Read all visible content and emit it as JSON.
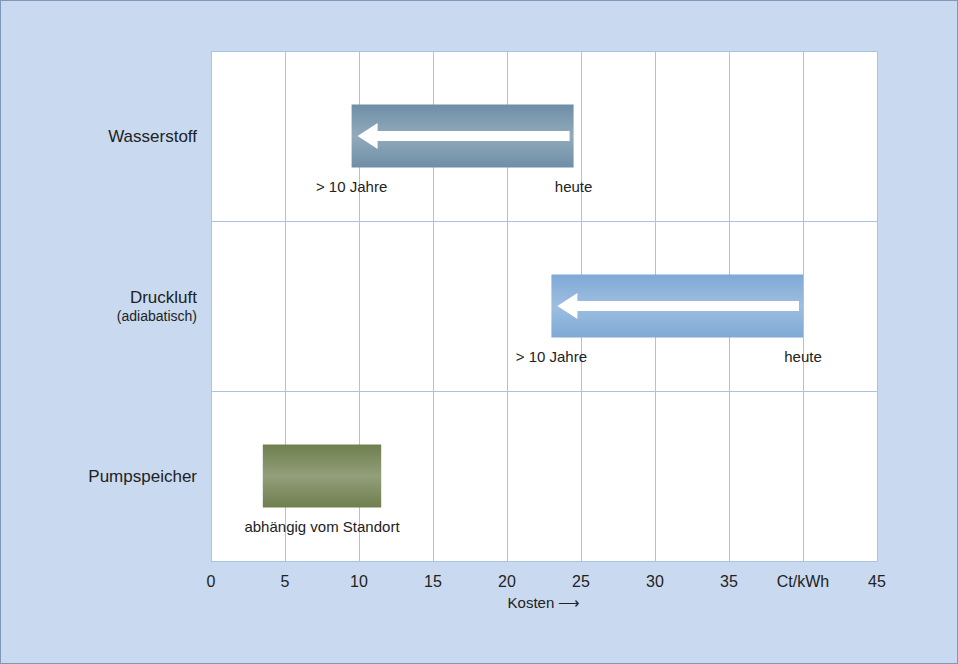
{
  "chart_data": {
    "type": "bar",
    "orientation": "horizontal",
    "categories": [
      "Wasserstoff",
      "Druckluft (adiabatisch)",
      "Pumpspeicher"
    ],
    "values": [
      [
        9.5,
        24.5
      ],
      [
        23,
        40
      ],
      [
        3.5,
        11.5
      ]
    ],
    "colors": [
      "#6e8ea6",
      "#7ea9d6",
      "#6f7f4e"
    ],
    "xlabel": "Kosten ⟶",
    "xlim": [
      0,
      45
    ],
    "xticks": [
      0,
      5,
      10,
      15,
      20,
      25,
      30,
      35,
      {
        "value": 40,
        "label": "Ct/kWh"
      },
      45
    ],
    "grid": true,
    "annotations": [
      {
        "category": "Wasserstoff",
        "x": 9.5,
        "text": "> 10 Jahre"
      },
      {
        "category": "Wasserstoff",
        "x": 24.5,
        "text": "heute"
      },
      {
        "category": "Druckluft (adiabatisch)",
        "x": 23,
        "text": "> 10 Jahre"
      },
      {
        "category": "Druckluft (adiabatisch)",
        "x": 40,
        "text": "heute"
      },
      {
        "category": "Pumpspeicher",
        "x": 7.5,
        "text": "abhängig vom Standort"
      }
    ]
  }
}
